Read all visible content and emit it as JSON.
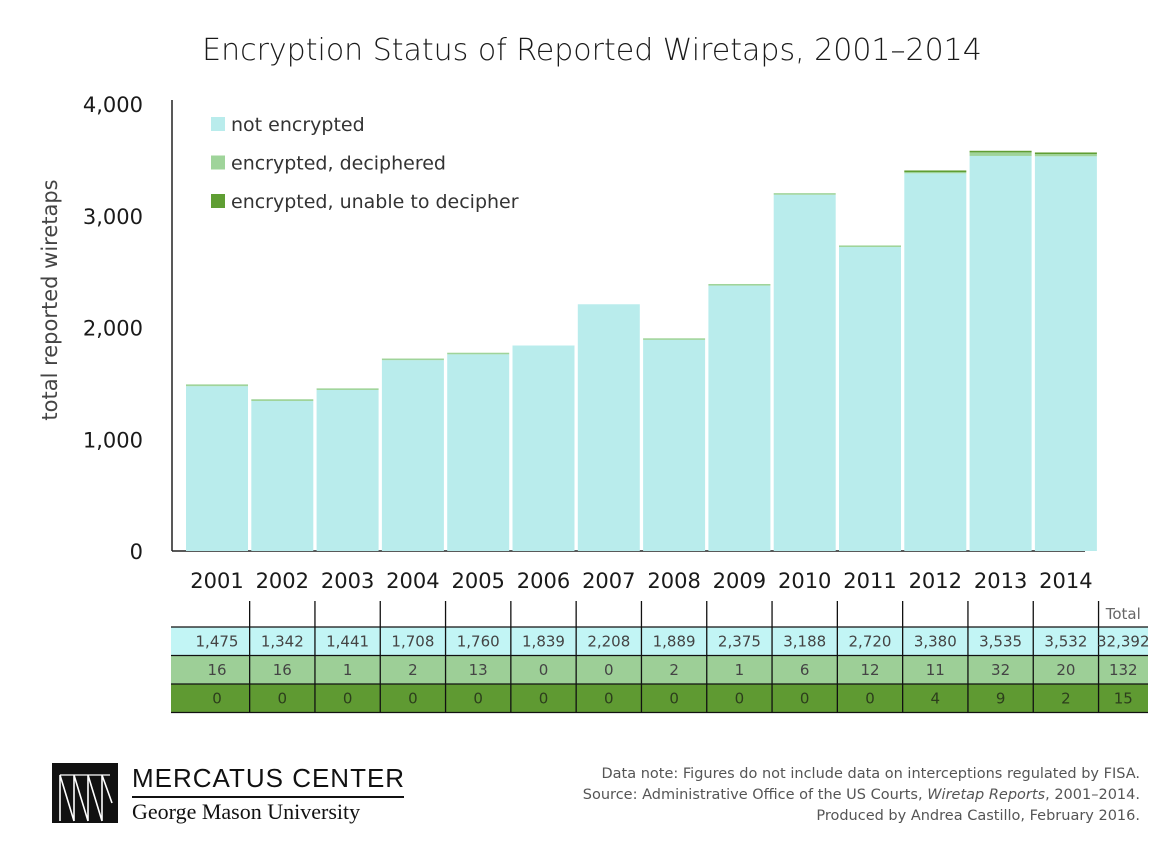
{
  "chart_data": {
    "type": "bar",
    "stacked": true,
    "title": "Encryption Status of Reported Wiretaps, 2001–2014",
    "ylabel": "total reported wiretaps",
    "xlabel": "",
    "ylim": [
      0,
      4000
    ],
    "yticks": [
      "0",
      "1,000",
      "2,000",
      "3,000",
      "4,000"
    ],
    "ytick_values": [
      0,
      1000,
      2000,
      3000,
      4000
    ],
    "categories": [
      "2001",
      "2002",
      "2003",
      "2004",
      "2005",
      "2006",
      "2007",
      "2008",
      "2009",
      "2010",
      "2011",
      "2012",
      "2013",
      "2014"
    ],
    "series": [
      {
        "name": "not encrypted",
        "color": "#b9ecec",
        "values": [
          1475,
          1342,
          1441,
          1708,
          1760,
          1839,
          2208,
          1889,
          2375,
          3188,
          2720,
          3380,
          3535,
          3532
        ],
        "labels": [
          "1,475",
          "1,342",
          "1,441",
          "1,708",
          "1,760",
          "1,839",
          "2,208",
          "1,889",
          "2,375",
          "3,188",
          "2,720",
          "3,380",
          "3,535",
          "3,532"
        ],
        "total": "32,392",
        "row_color": "#c2f5f5"
      },
      {
        "name": "encrypted, deciphered",
        "color": "#9fd49a",
        "values": [
          16,
          16,
          1,
          2,
          13,
          0,
          0,
          2,
          1,
          6,
          12,
          11,
          32,
          20
        ],
        "labels": [
          "16",
          "16",
          "1",
          "2",
          "13",
          "0",
          "0",
          "2",
          "1",
          "6",
          "12",
          "11",
          "32",
          "20"
        ],
        "total": "132",
        "row_color": "#9dcf97"
      },
      {
        "name": "encrypted, unable to decipher",
        "color": "#5f9e33",
        "values": [
          0,
          0,
          0,
          0,
          0,
          0,
          0,
          0,
          0,
          0,
          0,
          4,
          9,
          2
        ],
        "labels": [
          "0",
          "0",
          "0",
          "0",
          "0",
          "0",
          "0",
          "0",
          "0",
          "0",
          "0",
          "4",
          "9",
          "2"
        ],
        "total": "15",
        "row_color": "#5f9a32"
      }
    ],
    "legend_position": "top-left",
    "table_total_header": "Total",
    "grid": false
  },
  "footer": {
    "logo_name": "MERCATUS CENTER",
    "logo_sub": "George Mason University",
    "note_line1": "Data note: Figures do not include data on interceptions regulated by FISA.",
    "note_line2_pre": "Source: Administrative Office of the US Courts, ",
    "note_line2_em": "Wiretap Reports",
    "note_line2_post": ", 2001–2014.",
    "note_line3": "Produced by Andrea Castillo, February 2016."
  }
}
